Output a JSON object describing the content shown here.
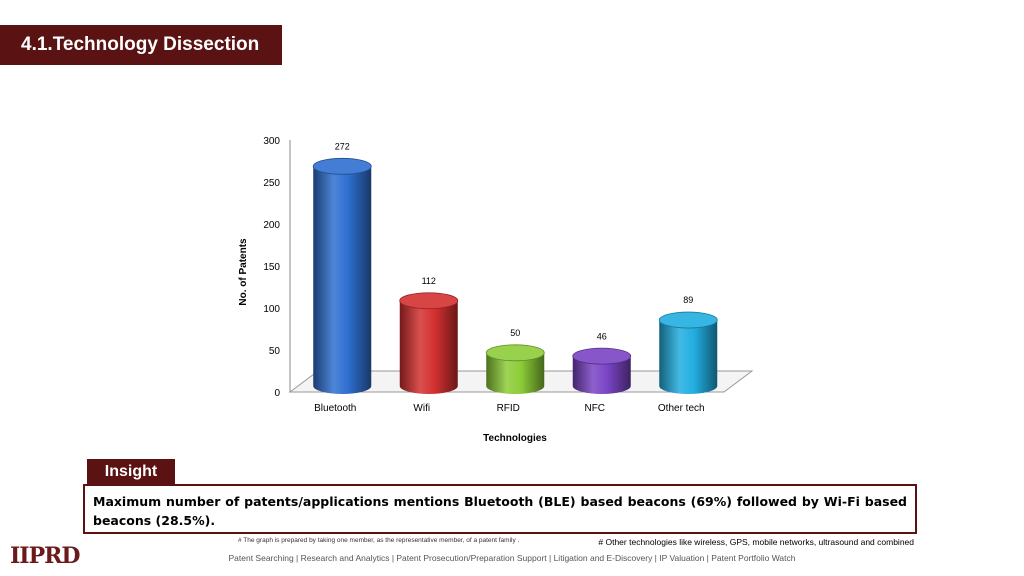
{
  "header": {
    "title": "4.1.Technology Dissection"
  },
  "chart_data": {
    "type": "bar",
    "categories": [
      "Bluetooth",
      "Wifi",
      "RFID",
      "NFC",
      "Other tech"
    ],
    "values": [
      272,
      112,
      50,
      46,
      89
    ],
    "xlabel": "Technologies",
    "ylabel": "No. of Patents",
    "ylim": [
      0,
      300
    ],
    "yticks": [
      0,
      50,
      100,
      150,
      200,
      250,
      300
    ],
    "colors": [
      "#2f6fd0",
      "#d43030",
      "#8ccc38",
      "#7a44c4",
      "#22aee0"
    ],
    "grid": false,
    "legend": "none"
  },
  "insight": {
    "label": "Insight",
    "text": "Maximum number of patents/applications mentions Bluetooth (BLE) based beacons (69%) followed by Wi-Fi based beacons (28.5%)."
  },
  "notes": {
    "left": "# The graph is prepared by taking one member, as the representative member, of a patent family .",
    "right": "# Other technologies like wireless, GPS, mobile networks, ultrasound and combined"
  },
  "logo": {
    "text": "IIPRD"
  },
  "footer": {
    "text": "Patent Searching | Research and Analytics | Patent Prosecution/Preparation Support | Litigation and E-Discovery | IP Valuation | Patent Portfolio Watch"
  }
}
